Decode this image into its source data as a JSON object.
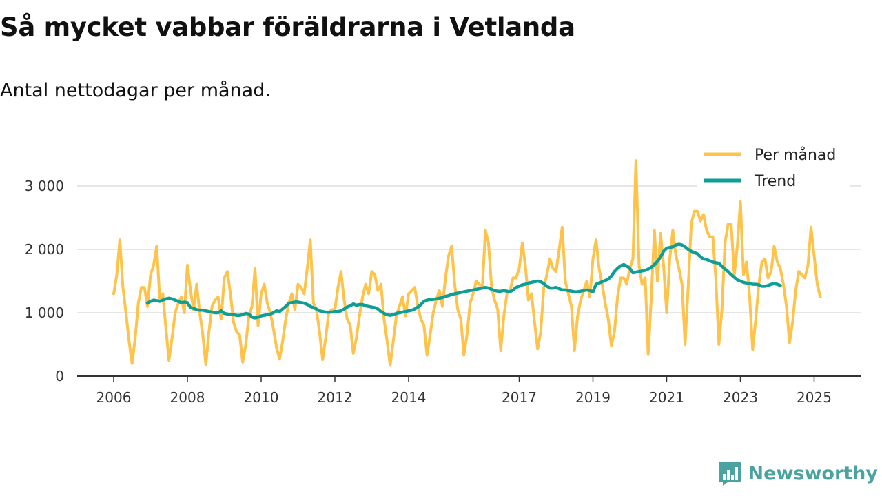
{
  "header": {
    "title": "Så mycket vabbar föräldrarna i Vetlanda",
    "subtitle": "Antal nettodagar per månad."
  },
  "brand": {
    "name": "Newsworthy"
  },
  "colors": {
    "monthly": "#ffc24a",
    "trend": "#0f9e93",
    "grid": "#dddddd",
    "axis": "#333333",
    "brand": "#4aa3a0"
  },
  "chart_data": {
    "type": "line",
    "title": "Så mycket vabbar föräldrarna i Vetlanda",
    "subtitle": "Antal nettodagar per månad.",
    "xlabel": "",
    "ylabel": "",
    "xlim": [
      2006,
      2025.75
    ],
    "ylim": [
      0,
      3400
    ],
    "y_ticks": [
      0,
      1000,
      2000,
      3000
    ],
    "y_tick_labels": [
      "0",
      "1 000",
      "2 000",
      "3 000"
    ],
    "x_ticks": [
      2006,
      2008,
      2010,
      2012,
      2014,
      2017,
      2019,
      2021,
      2023,
      2025
    ],
    "x_tick_labels": [
      "2006",
      "2008",
      "2010",
      "2012",
      "2014",
      "2017",
      "2019",
      "2021",
      "2023",
      "2025"
    ],
    "grid": true,
    "legend_position": "top-right",
    "series": [
      {
        "name": "Per månad",
        "x_start": 2006.0,
        "step": 0.0833333,
        "values": [
          1300,
          1600,
          2150,
          1400,
          1000,
          550,
          200,
          600,
          1150,
          1400,
          1400,
          1100,
          1600,
          1750,
          2050,
          1200,
          1300,
          750,
          250,
          600,
          1000,
          1150,
          1250,
          1000,
          1750,
          1350,
          1050,
          1450,
          1000,
          650,
          180,
          700,
          1100,
          1200,
          1250,
          900,
          1550,
          1650,
          1300,
          850,
          700,
          650,
          220,
          500,
          950,
          1100,
          1700,
          800,
          1300,
          1450,
          1150,
          1000,
          750,
          450,
          270,
          550,
          900,
          1150,
          1300,
          1050,
          1450,
          1400,
          1300,
          1700,
          2150,
          1150,
          1050,
          700,
          260,
          600,
          1000,
          1050,
          1050,
          1400,
          1650,
          1200,
          900,
          800,
          360,
          600,
          950,
          1250,
          1450,
          1300,
          1650,
          1600,
          1350,
          1450,
          900,
          550,
          170,
          550,
          950,
          1100,
          1250,
          950,
          1300,
          1350,
          1400,
          1100,
          900,
          800,
          330,
          650,
          1000,
          1200,
          1350,
          1100,
          1550,
          1900,
          2050,
          1450,
          1050,
          900,
          330,
          650,
          1150,
          1300,
          1500,
          1450,
          1400,
          2300,
          2100,
          1400,
          1200,
          1050,
          400,
          950,
          1300,
          1350,
          1550,
          1550,
          1700,
          2100,
          1750,
          1200,
          1300,
          850,
          430,
          700,
          1400,
          1600,
          1850,
          1700,
          1650,
          2000,
          2350,
          1500,
          1300,
          1100,
          400,
          950,
          1200,
          1350,
          1500,
          1250,
          1850,
          2150,
          1700,
          1450,
          1150,
          900,
          480,
          700,
          1250,
          1550,
          1550,
          1450,
          1700,
          1850,
          3400,
          1750,
          1450,
          1550,
          340,
          1250,
          2300,
          1500,
          2250,
          1750,
          1000,
          1850,
          2300,
          1900,
          1700,
          1450,
          500,
          1400,
          2400,
          2600,
          2600,
          2450,
          2550,
          2300,
          2200,
          2200,
          1550,
          500,
          1050,
          2100,
          2400,
          2400,
          1600,
          2050,
          2750,
          1600,
          1800,
          1250,
          420,
          900,
          1450,
          1800,
          1850,
          1550,
          1650,
          2050,
          1800,
          1700,
          1450,
          1100,
          530,
          850,
          1350,
          1650,
          1600,
          1550,
          1750,
          2350,
          1900,
          1450,
          1250
        ]
      },
      {
        "name": "Trend",
        "x_start": 2006.9167,
        "step": 0.0833333,
        "values": [
          1150,
          1180,
          1200,
          1190,
          1180,
          1200,
          1220,
          1230,
          1220,
          1200,
          1180,
          1160,
          1170,
          1160,
          1080,
          1070,
          1050,
          1040,
          1040,
          1030,
          1020,
          1010,
          1000,
          1000,
          1030,
          990,
          980,
          970,
          970,
          960,
          960,
          970,
          990,
          980,
          930,
          920,
          930,
          950,
          960,
          970,
          980,
          1000,
          1030,
          1020,
          1060,
          1100,
          1150,
          1160,
          1170,
          1170,
          1160,
          1150,
          1130,
          1100,
          1080,
          1060,
          1030,
          1020,
          1010,
          1010,
          1010,
          1020,
          1020,
          1030,
          1060,
          1090,
          1110,
          1140,
          1120,
          1130,
          1130,
          1110,
          1100,
          1090,
          1080,
          1060,
          1020,
          990,
          970,
          960,
          970,
          990,
          1000,
          1010,
          1020,
          1030,
          1040,
          1060,
          1090,
          1130,
          1180,
          1200,
          1210,
          1210,
          1220,
          1230,
          1240,
          1260,
          1270,
          1290,
          1300,
          1310,
          1320,
          1330,
          1340,
          1350,
          1360,
          1370,
          1380,
          1390,
          1400,
          1390,
          1370,
          1350,
          1340,
          1340,
          1350,
          1340,
          1330,
          1360,
          1400,
          1420,
          1440,
          1450,
          1470,
          1480,
          1490,
          1500,
          1490,
          1460,
          1420,
          1390,
          1390,
          1400,
          1380,
          1360,
          1360,
          1350,
          1340,
          1330,
          1330,
          1340,
          1350,
          1360,
          1350,
          1330,
          1450,
          1470,
          1490,
          1510,
          1530,
          1580,
          1650,
          1700,
          1740,
          1760,
          1740,
          1700,
          1630,
          1640,
          1650,
          1660,
          1670,
          1690,
          1720,
          1760,
          1810,
          1880,
          1970,
          2020,
          2030,
          2040,
          2070,
          2080,
          2070,
          2040,
          2000,
          1970,
          1950,
          1930,
          1880,
          1850,
          1840,
          1820,
          1800,
          1790,
          1780,
          1730,
          1690,
          1650,
          1600,
          1560,
          1520,
          1500,
          1480,
          1470,
          1460,
          1450,
          1450,
          1440,
          1420,
          1420,
          1430,
          1450,
          1460,
          1450,
          1430
        ]
      }
    ]
  }
}
